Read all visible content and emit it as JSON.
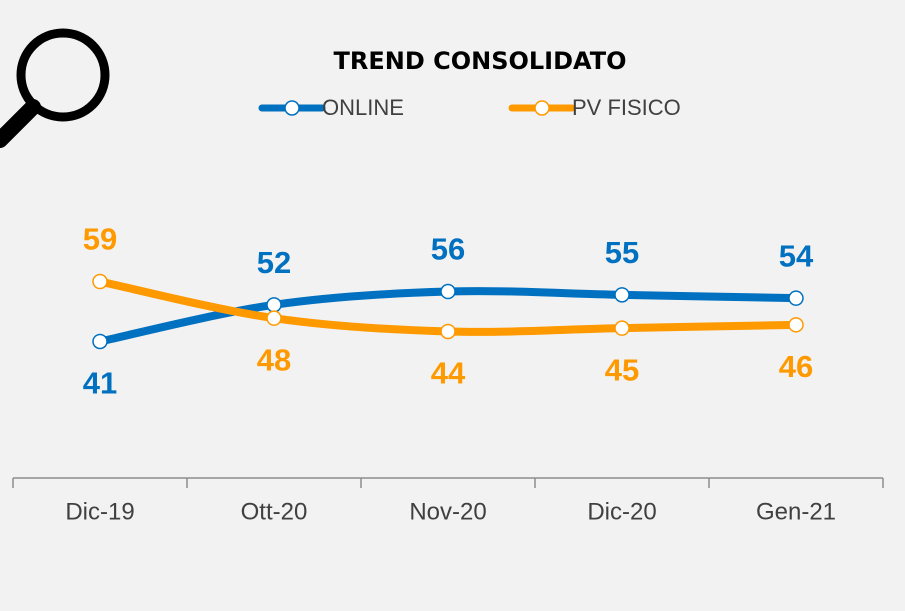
{
  "chart_data": {
    "type": "line",
    "title": "TREND CONSOLIDATO",
    "categories": [
      "Dic-19",
      "Ott-20",
      "Nov-20",
      "Dic-20",
      "Gen-21"
    ],
    "series": [
      {
        "name": "ONLINE",
        "color": "#0070c0",
        "values": [
          41,
          52,
          56,
          55,
          54
        ]
      },
      {
        "name": "PV FISICO",
        "color": "#ff9900",
        "values": [
          59,
          48,
          44,
          45,
          46
        ]
      }
    ],
    "ylim": [
      0,
      100
    ],
    "legend": "top",
    "smooth": true
  }
}
